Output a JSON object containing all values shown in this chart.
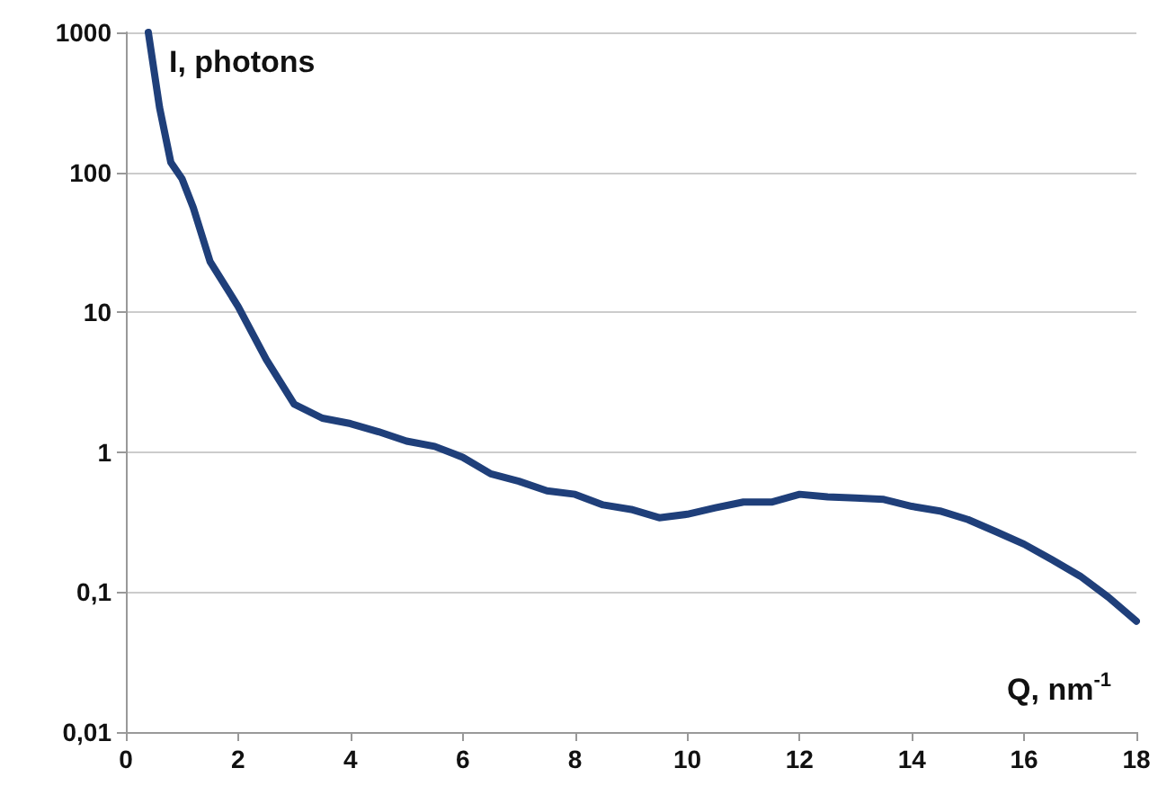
{
  "chart_data": {
    "type": "line",
    "xlabel": "Q, nm$^{-1}$",
    "ylabel": "I, photons",
    "log": "y",
    "grid": "y",
    "marker": "none",
    "line_style": "solid",
    "xlim": [
      0,
      18
    ],
    "xticks": [
      0,
      2,
      4,
      6,
      8,
      10,
      12,
      14,
      16,
      18
    ],
    "ylim": [
      0.01,
      1000
    ],
    "yticks": [
      {
        "value": 0.01,
        "label": "0,01"
      },
      {
        "value": 0.1,
        "label": "0,1"
      },
      1,
      10,
      100,
      1000
    ],
    "x": [
      0.4,
      0.6,
      0.8,
      1.0,
      1.2,
      1.5,
      2,
      2.5,
      3,
      3.5,
      4,
      4.5,
      5,
      5.5,
      6,
      6.5,
      7,
      7.5,
      8,
      8.5,
      9,
      9.5,
      10,
      10.5,
      11,
      11.5,
      12,
      12.5,
      13,
      13.5,
      14,
      14.5,
      15,
      15.5,
      16,
      16.5,
      17,
      17.5,
      18
    ],
    "series": [
      {
        "color": "#1f3f7a",
        "values": [
          1000,
          290,
          118,
          90,
          56,
          23,
          11,
          4.6,
          2.2,
          1.75,
          1.6,
          1.4,
          1.2,
          1.1,
          0.92,
          0.7,
          0.62,
          0.53,
          0.5,
          0.42,
          0.39,
          0.34,
          0.36,
          0.4,
          0.44,
          0.44,
          0.5,
          0.48,
          0.47,
          0.46,
          0.41,
          0.38,
          0.33,
          0.27,
          0.22,
          0.17,
          0.13,
          0.092,
          0.062
        ]
      }
    ]
  }
}
